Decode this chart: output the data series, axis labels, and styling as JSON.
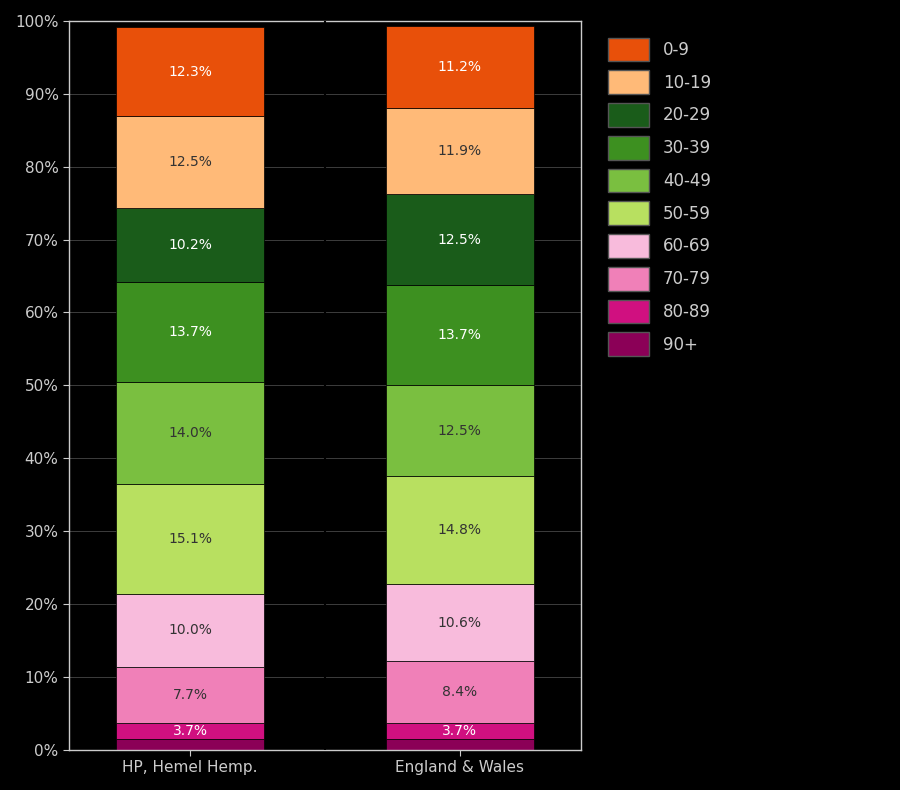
{
  "categories": [
    "HP, Hemel Hemp.",
    "England & Wales"
  ],
  "segments_bottom_to_top": [
    {
      "label": "90+",
      "color": "#8B0057",
      "values": [
        1.5,
        1.5
      ]
    },
    {
      "label": "80-89",
      "color": "#D01080",
      "values": [
        2.2,
        2.2
      ]
    },
    {
      "label": "70-79",
      "color": "#F080B8",
      "values": [
        7.7,
        8.4
      ]
    },
    {
      "label": "60-69",
      "color": "#F8BBDC",
      "values": [
        10.0,
        10.6
      ]
    },
    {
      "label": "50-59",
      "color": "#B8E060",
      "values": [
        15.1,
        14.8
      ]
    },
    {
      "label": "40-49",
      "color": "#7ABF40",
      "values": [
        14.0,
        12.5
      ]
    },
    {
      "label": "30-39",
      "color": "#3D9020",
      "values": [
        13.7,
        13.7
      ]
    },
    {
      "label": "20-29",
      "color": "#1A5C1A",
      "values": [
        10.2,
        12.5
      ]
    },
    {
      "label": "10-19",
      "color": "#FFBA78",
      "values": [
        12.5,
        11.9
      ]
    },
    {
      "label": "0-9",
      "color": "#E8500A",
      "values": [
        12.3,
        11.2
      ]
    }
  ],
  "legend_order_top_to_bottom": [
    "0-9",
    "10-19",
    "20-29",
    "30-39",
    "40-49",
    "50-59",
    "60-69",
    "70-79",
    "80-89",
    "90+"
  ],
  "bar_labels": {
    "HP, Hemel Hemp.": [
      "3.7%",
      "7.7%",
      "10.0%",
      "15.1%",
      "14.0%",
      "13.7%",
      "10.2%",
      "12.5%",
      "12.3%"
    ],
    "England & Wales": [
      "3.7%",
      "8.4%",
      "10.6%",
      "14.8%",
      "12.5%",
      "13.7%",
      "12.5%",
      "11.9%",
      "11.2%"
    ]
  },
  "background_color": "#000000",
  "text_color": "#cccccc",
  "axis_label_color": "#cccccc",
  "bar_width": 0.55,
  "x_positions": [
    0,
    1
  ],
  "xlim": [
    -0.45,
    1.45
  ],
  "ylim": [
    0,
    100
  ],
  "ytick_labels": [
    "0%",
    "10%",
    "20%",
    "30%",
    "40%",
    "50%",
    "60%",
    "70%",
    "80%",
    "90%",
    "100%"
  ],
  "ytick_values": [
    0,
    10,
    20,
    30,
    40,
    50,
    60,
    70,
    80,
    90,
    100
  ],
  "grid_color": "#555555",
  "separator_color": "#000000",
  "label_fontsize": 10,
  "tick_fontsize": 11,
  "legend_fontsize": 12
}
